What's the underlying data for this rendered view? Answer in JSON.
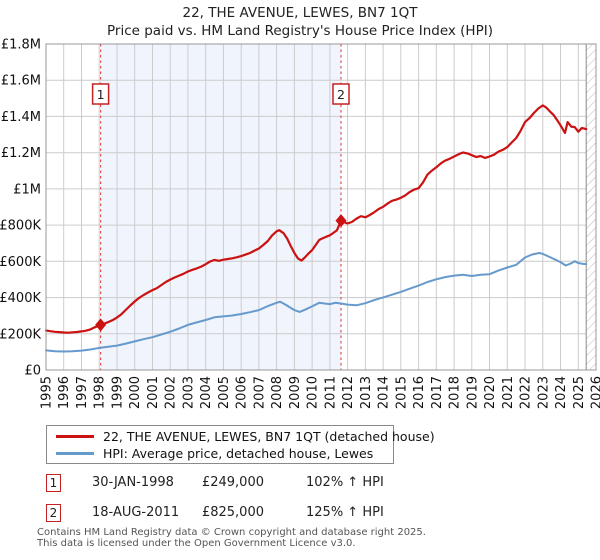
{
  "title": {
    "line1": "22, THE AVENUE, LEWES, BN7 1QT",
    "line2": "Price paid vs. HM Land Registry's House Price Index (HPI)"
  },
  "chart_data": {
    "type": "line",
    "title": "22, THE AVENUE, LEWES, BN7 1QT",
    "subtitle": "Price paid vs. HM Land Registry's House Price Index (HPI)",
    "x_range": [
      1995,
      2026
    ],
    "y_range": [
      0,
      1800000
    ],
    "grid": true,
    "grid_color": "#cccccc",
    "border_color": "#999999",
    "plot_bg": "#ffffff",
    "shaded_span": {
      "from": 1998.08,
      "to": 2011.63,
      "color": "#f0f4fc"
    },
    "future_hatch": {
      "from": 2025.45,
      "color": "#b9b9b9",
      "edge_color": "#888888"
    },
    "sale_line_color": "#e05050",
    "marker_box_border": "#c22222",
    "y_ticks": [
      {
        "value": 0,
        "label": "£0"
      },
      {
        "value": 200000,
        "label": "£200K"
      },
      {
        "value": 400000,
        "label": "£400K"
      },
      {
        "value": 600000,
        "label": "£600K"
      },
      {
        "value": 800000,
        "label": "£800K"
      },
      {
        "value": 1000000,
        "label": "£1M"
      },
      {
        "value": 1200000,
        "label": "£1.2M"
      },
      {
        "value": 1400000,
        "label": "£1.4M"
      },
      {
        "value": 1600000,
        "label": "£1.6M"
      },
      {
        "value": 1800000,
        "label": "£1.8M"
      }
    ],
    "x_ticks": [
      "1995",
      "1996",
      "1997",
      "1998",
      "1999",
      "2000",
      "2001",
      "2002",
      "2003",
      "2004",
      "2005",
      "2006",
      "2007",
      "2008",
      "2009",
      "2010",
      "2011",
      "2012",
      "2013",
      "2014",
      "2015",
      "2016",
      "2017",
      "2018",
      "2019",
      "2020",
      "2021",
      "2022",
      "2023",
      "2024",
      "2025",
      "2026"
    ],
    "sale_markers": [
      {
        "label": "1",
        "x": 1998.08,
        "value": 249000
      },
      {
        "label": "2",
        "x": 2011.63,
        "value": 825000
      }
    ],
    "series": [
      {
        "name": "22, THE AVENUE, LEWES, BN7 1QT (detached house)",
        "color": "#cc1111",
        "points": [
          [
            1995.0,
            218000
          ],
          [
            1995.25,
            214000
          ],
          [
            1995.5,
            211000
          ],
          [
            1995.75,
            209000
          ],
          [
            1996.0,
            207000
          ],
          [
            1996.25,
            206000
          ],
          [
            1996.5,
            208000
          ],
          [
            1996.75,
            210000
          ],
          [
            1997.0,
            213000
          ],
          [
            1997.25,
            217000
          ],
          [
            1997.5,
            224000
          ],
          [
            1997.75,
            236000
          ],
          [
            1998.08,
            249000
          ],
          [
            1998.3,
            257000
          ],
          [
            1998.55,
            266000
          ],
          [
            1998.8,
            278000
          ],
          [
            1999.0,
            290000
          ],
          [
            1999.25,
            308000
          ],
          [
            1999.5,
            332000
          ],
          [
            1999.75,
            356000
          ],
          [
            2000.0,
            378000
          ],
          [
            2000.25,
            398000
          ],
          [
            2000.5,
            414000
          ],
          [
            2000.75,
            428000
          ],
          [
            2001.0,
            441000
          ],
          [
            2001.25,
            452000
          ],
          [
            2001.5,
            469000
          ],
          [
            2001.75,
            486000
          ],
          [
            2002.0,
            499000
          ],
          [
            2002.25,
            511000
          ],
          [
            2002.5,
            521000
          ],
          [
            2002.75,
            531000
          ],
          [
            2003.0,
            544000
          ],
          [
            2003.25,
            553000
          ],
          [
            2003.5,
            561000
          ],
          [
            2003.75,
            571000
          ],
          [
            2004.0,
            584000
          ],
          [
            2004.25,
            599000
          ],
          [
            2004.5,
            608000
          ],
          [
            2004.75,
            603000
          ],
          [
            2005.0,
            609000
          ],
          [
            2005.25,
            613000
          ],
          [
            2005.5,
            617000
          ],
          [
            2005.75,
            622000
          ],
          [
            2006.0,
            629000
          ],
          [
            2006.25,
            637000
          ],
          [
            2006.5,
            646000
          ],
          [
            2006.75,
            659000
          ],
          [
            2007.0,
            671000
          ],
          [
            2007.25,
            690000
          ],
          [
            2007.5,
            712000
          ],
          [
            2007.75,
            744000
          ],
          [
            2008.0,
            766000
          ],
          [
            2008.15,
            772000
          ],
          [
            2008.4,
            755000
          ],
          [
            2008.6,
            724000
          ],
          [
            2008.8,
            684000
          ],
          [
            2009.0,
            646000
          ],
          [
            2009.2,
            616000
          ],
          [
            2009.4,
            604000
          ],
          [
            2009.6,
            622000
          ],
          [
            2009.8,
            644000
          ],
          [
            2010.0,
            662000
          ],
          [
            2010.2,
            690000
          ],
          [
            2010.4,
            718000
          ],
          [
            2010.6,
            728000
          ],
          [
            2010.8,
            736000
          ],
          [
            2011.0,
            744000
          ],
          [
            2011.2,
            757000
          ],
          [
            2011.4,
            772000
          ],
          [
            2011.63,
            825000
          ],
          [
            2011.8,
            816000
          ],
          [
            2012.0,
            809000
          ],
          [
            2012.25,
            818000
          ],
          [
            2012.5,
            836000
          ],
          [
            2012.75,
            849000
          ],
          [
            2013.0,
            843000
          ],
          [
            2013.25,
            856000
          ],
          [
            2013.5,
            871000
          ],
          [
            2013.75,
            889000
          ],
          [
            2014.0,
            901000
          ],
          [
            2014.25,
            919000
          ],
          [
            2014.5,
            934000
          ],
          [
            2014.75,
            941000
          ],
          [
            2015.0,
            951000
          ],
          [
            2015.25,
            964000
          ],
          [
            2015.5,
            983000
          ],
          [
            2015.75,
            996000
          ],
          [
            2016.0,
            1004000
          ],
          [
            2016.25,
            1036000
          ],
          [
            2016.5,
            1079000
          ],
          [
            2016.75,
            1101000
          ],
          [
            2017.0,
            1119000
          ],
          [
            2017.25,
            1141000
          ],
          [
            2017.5,
            1156000
          ],
          [
            2017.75,
            1166000
          ],
          [
            2018.0,
            1179000
          ],
          [
            2018.25,
            1191000
          ],
          [
            2018.5,
            1201000
          ],
          [
            2018.75,
            1196000
          ],
          [
            2019.0,
            1186000
          ],
          [
            2019.25,
            1176000
          ],
          [
            2019.5,
            1181000
          ],
          [
            2019.75,
            1171000
          ],
          [
            2020.0,
            1179000
          ],
          [
            2020.25,
            1189000
          ],
          [
            2020.5,
            1206000
          ],
          [
            2020.75,
            1216000
          ],
          [
            2021.0,
            1231000
          ],
          [
            2021.25,
            1256000
          ],
          [
            2021.5,
            1281000
          ],
          [
            2021.75,
            1321000
          ],
          [
            2022.0,
            1369000
          ],
          [
            2022.25,
            1391000
          ],
          [
            2022.5,
            1419000
          ],
          [
            2022.75,
            1444000
          ],
          [
            2023.0,
            1461000
          ],
          [
            2023.2,
            1449000
          ],
          [
            2023.4,
            1428000
          ],
          [
            2023.6,
            1409000
          ],
          [
            2023.8,
            1381000
          ],
          [
            2024.0,
            1351000
          ],
          [
            2024.25,
            1309000
          ],
          [
            2024.4,
            1369000
          ],
          [
            2024.6,
            1344000
          ],
          [
            2024.8,
            1341000
          ],
          [
            2025.0,
            1316000
          ],
          [
            2025.2,
            1336000
          ],
          [
            2025.45,
            1330000
          ]
        ]
      },
      {
        "name": "HPI: Average price, detached house, Lewes",
        "color": "#6699cc",
        "points": [
          [
            1995.0,
            108000
          ],
          [
            1995.5,
            104000
          ],
          [
            1996.0,
            102000
          ],
          [
            1996.5,
            103000
          ],
          [
            1997.0,
            107000
          ],
          [
            1997.5,
            113000
          ],
          [
            1998.08,
            123000
          ],
          [
            1998.5,
            128000
          ],
          [
            1999.0,
            135000
          ],
          [
            1999.5,
            146000
          ],
          [
            2000.0,
            158000
          ],
          [
            2000.5,
            170000
          ],
          [
            2001.0,
            181000
          ],
          [
            2001.5,
            196000
          ],
          [
            2002.0,
            211000
          ],
          [
            2002.5,
            229000
          ],
          [
            2003.0,
            249000
          ],
          [
            2003.5,
            263000
          ],
          [
            2004.0,
            276000
          ],
          [
            2004.5,
            291000
          ],
          [
            2005.0,
            296000
          ],
          [
            2005.5,
            301000
          ],
          [
            2006.0,
            309000
          ],
          [
            2006.5,
            319000
          ],
          [
            2007.0,
            331000
          ],
          [
            2007.5,
            353000
          ],
          [
            2008.0,
            371000
          ],
          [
            2008.2,
            377000
          ],
          [
            2008.5,
            361000
          ],
          [
            2009.0,
            331000
          ],
          [
            2009.3,
            321000
          ],
          [
            2009.6,
            333000
          ],
          [
            2010.0,
            351000
          ],
          [
            2010.4,
            371000
          ],
          [
            2010.7,
            367000
          ],
          [
            2011.0,
            364000
          ],
          [
            2011.3,
            371000
          ],
          [
            2011.63,
            367000
          ],
          [
            2012.0,
            361000
          ],
          [
            2012.5,
            357000
          ],
          [
            2013.0,
            369000
          ],
          [
            2013.5,
            386000
          ],
          [
            2014.0,
            401000
          ],
          [
            2014.5,
            416000
          ],
          [
            2015.0,
            431000
          ],
          [
            2015.5,
            449000
          ],
          [
            2016.0,
            466000
          ],
          [
            2016.5,
            486000
          ],
          [
            2017.0,
            501000
          ],
          [
            2017.5,
            513000
          ],
          [
            2018.0,
            521000
          ],
          [
            2018.5,
            526000
          ],
          [
            2019.0,
            519000
          ],
          [
            2019.5,
            526000
          ],
          [
            2020.0,
            529000
          ],
          [
            2020.5,
            549000
          ],
          [
            2021.0,
            566000
          ],
          [
            2021.5,
            581000
          ],
          [
            2022.0,
            621000
          ],
          [
            2022.4,
            638000
          ],
          [
            2022.8,
            646000
          ],
          [
            2023.0,
            641000
          ],
          [
            2023.5,
            619000
          ],
          [
            2024.0,
            596000
          ],
          [
            2024.3,
            577000
          ],
          [
            2024.6,
            589000
          ],
          [
            2024.8,
            601000
          ],
          [
            2025.0,
            591000
          ],
          [
            2025.2,
            587000
          ],
          [
            2025.45,
            585000
          ]
        ]
      }
    ],
    "annotations": [
      {
        "num": "1",
        "date": "30-JAN-1998",
        "price": "£249,000",
        "vs_hpi": "102% ↑ HPI"
      },
      {
        "num": "2",
        "date": "18-AUG-2011",
        "price": "£825,000",
        "vs_hpi": "125% ↑ HPI"
      }
    ]
  },
  "footer": {
    "line1": "Contains HM Land Registry data © Crown copyright and database right 2025.",
    "line2": "This data is licensed under the Open Government Licence v3.0."
  }
}
